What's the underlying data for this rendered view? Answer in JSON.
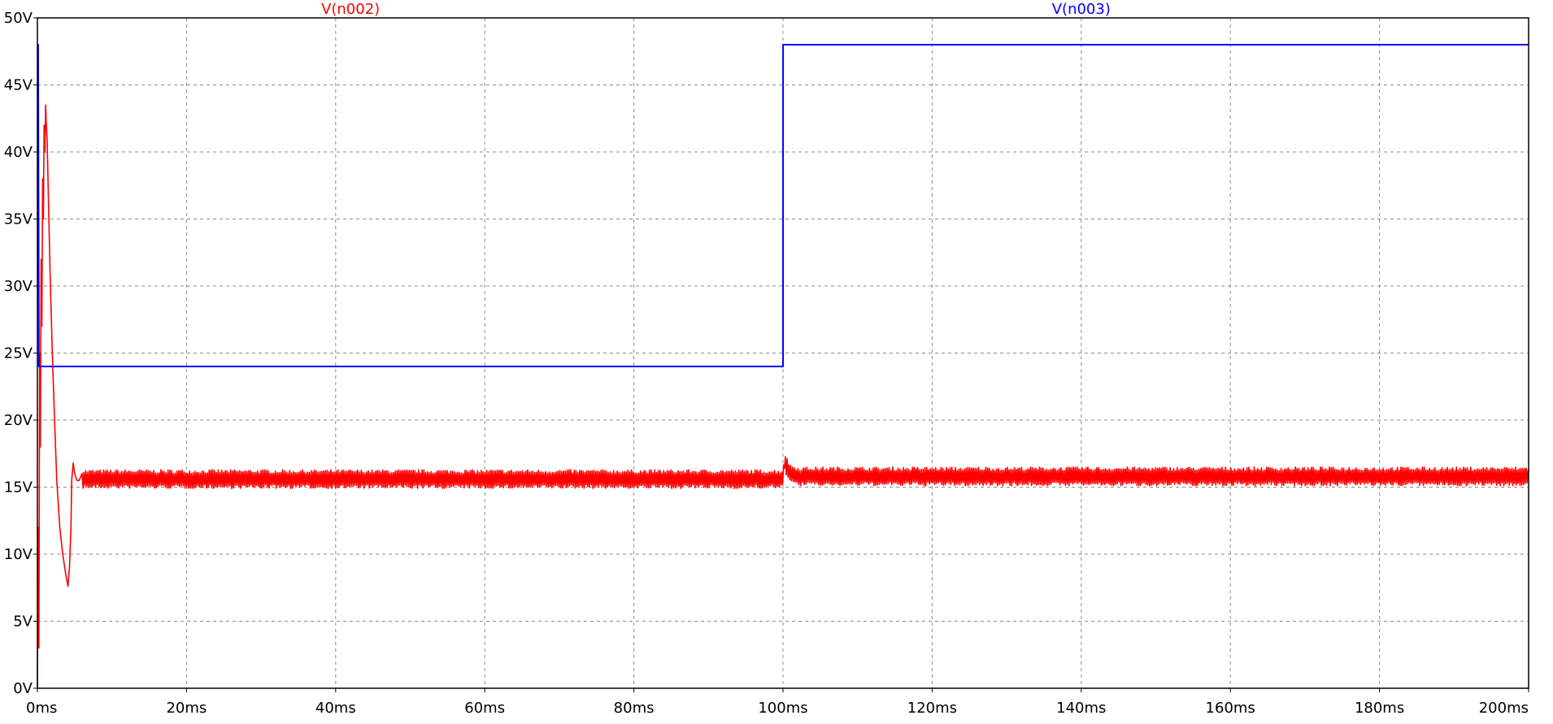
{
  "chart_data": {
    "type": "line",
    "title": "",
    "xlabel": "",
    "ylabel": "",
    "xlim": [
      0,
      200
    ],
    "ylim": [
      0,
      50
    ],
    "grid": true,
    "legend": "top (trace names above plot)",
    "x_ticks": [
      {
        "value": 0,
        "label": "0ms"
      },
      {
        "value": 20,
        "label": "20ms"
      },
      {
        "value": 40,
        "label": "40ms"
      },
      {
        "value": 60,
        "label": "60ms"
      },
      {
        "value": 80,
        "label": "80ms"
      },
      {
        "value": 100,
        "label": "100ms"
      },
      {
        "value": 120,
        "label": "120ms"
      },
      {
        "value": 140,
        "label": "140ms"
      },
      {
        "value": 160,
        "label": "160ms"
      },
      {
        "value": 180,
        "label": "180ms"
      },
      {
        "value": 200,
        "label": "200ms"
      }
    ],
    "y_ticks": [
      {
        "value": 0,
        "label": "0V"
      },
      {
        "value": 5,
        "label": "5V"
      },
      {
        "value": 10,
        "label": "10V"
      },
      {
        "value": 15,
        "label": "15V"
      },
      {
        "value": 20,
        "label": "20V"
      },
      {
        "value": 25,
        "label": "25V"
      },
      {
        "value": 30,
        "label": "30V"
      },
      {
        "value": 35,
        "label": "35V"
      },
      {
        "value": 40,
        "label": "40V"
      },
      {
        "value": 45,
        "label": "45V"
      },
      {
        "value": 50,
        "label": "50V"
      }
    ],
    "series": [
      {
        "name": "V(n002)",
        "color": "#ff0000",
        "x": [
          0,
          0.1,
          0.2,
          0.3,
          0.4,
          0.5,
          0.6,
          0.7,
          0.8,
          0.9,
          1.0,
          1.1,
          1.2,
          1.3,
          1.5,
          1.7,
          2.0,
          2.3,
          2.6,
          3.0,
          3.4,
          3.8,
          4.1,
          4.3,
          4.5,
          4.6,
          4.8,
          5.0,
          5.3,
          5.6,
          6.0,
          100,
          100.2,
          100.5,
          101,
          102,
          200
        ],
        "y": [
          0,
          12,
          3,
          25,
          18,
          32,
          27,
          38,
          35,
          42,
          40,
          43.5,
          42,
          41,
          36,
          31,
          25,
          20,
          15.5,
          12,
          10,
          8.5,
          7.6,
          9,
          12,
          15.5,
          16.8,
          16,
          15.5,
          15.5,
          15.6,
          15.6,
          17.0,
          16.5,
          16.0,
          15.8,
          15.8
        ],
        "ripple": 0.7
      },
      {
        "name": "V(n003)",
        "color": "#0000ff",
        "x": [
          0,
          0.1,
          0.2,
          100,
          100.01,
          200
        ],
        "y": [
          48,
          48,
          24,
          24,
          48,
          48
        ]
      }
    ]
  }
}
